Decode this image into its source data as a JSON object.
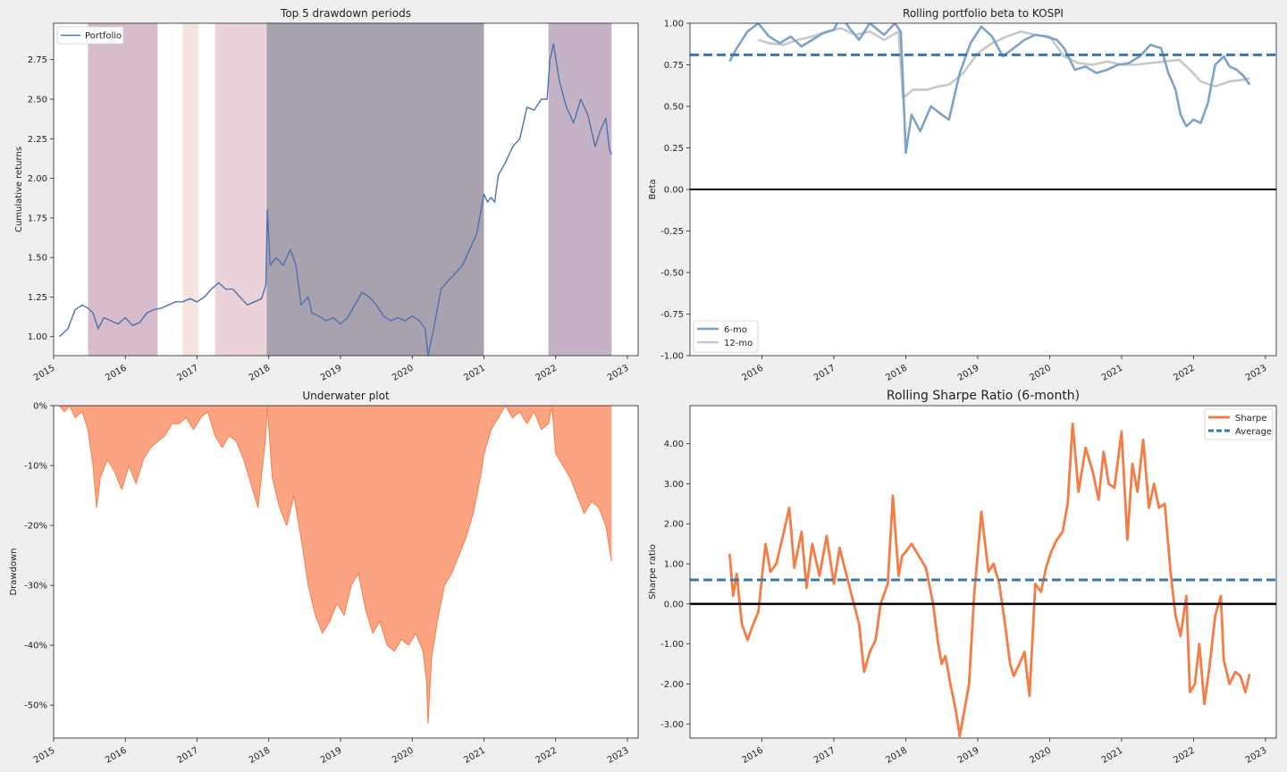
{
  "chart_data": [
    {
      "type": "line",
      "title": "Top 5 drawdown periods",
      "xlabel": "",
      "ylabel": "Cumulative returns",
      "ylim": [
        0.88,
        2.98
      ],
      "xlim": [
        2015.0,
        2023.15
      ],
      "xticks": [
        "2015",
        "2016",
        "2017",
        "2018",
        "2019",
        "2020",
        "2021",
        "2022",
        "2023"
      ],
      "yticks": [
        "1.00",
        "1.25",
        "1.50",
        "1.75",
        "2.00",
        "2.25",
        "2.50",
        "2.75"
      ],
      "legend": {
        "position": "top-left",
        "entries": [
          "Portfolio"
        ]
      },
      "drawdown_periods": [
        {
          "start": 2015.48,
          "end": 2016.45,
          "color": "#c7a0b5",
          "opacity": 0.7
        },
        {
          "start": 2016.8,
          "end": 2017.02,
          "color": "#f2d6d0",
          "opacity": 0.7
        },
        {
          "start": 2017.25,
          "end": 2017.97,
          "color": "#ddb4bf",
          "opacity": 0.6
        },
        {
          "start": 2017.97,
          "end": 2021.0,
          "color": "#7a6e82",
          "opacity": 0.65
        },
        {
          "start": 2021.9,
          "end": 2022.78,
          "color": "#9f7fa1",
          "opacity": 0.6
        }
      ],
      "series": [
        {
          "name": "Portfolio",
          "color": "#4c72b0",
          "x": [
            2015.08,
            2015.2,
            2015.3,
            2015.4,
            2015.48,
            2015.55,
            2015.62,
            2015.7,
            2015.8,
            2015.9,
            2016.0,
            2016.1,
            2016.2,
            2016.3,
            2016.4,
            2016.5,
            2016.6,
            2016.7,
            2016.8,
            2016.9,
            2017.0,
            2017.1,
            2017.2,
            2017.3,
            2017.4,
            2017.5,
            2017.6,
            2017.7,
            2017.8,
            2017.9,
            2017.96,
            2017.98,
            2018.02,
            2018.1,
            2018.2,
            2018.3,
            2018.38,
            2018.45,
            2018.55,
            2018.6,
            2018.7,
            2018.8,
            2018.9,
            2019.0,
            2019.1,
            2019.2,
            2019.3,
            2019.4,
            2019.5,
            2019.6,
            2019.7,
            2019.8,
            2019.9,
            2020.0,
            2020.1,
            2020.18,
            2020.22,
            2020.3,
            2020.4,
            2020.5,
            2020.6,
            2020.7,
            2020.8,
            2020.9,
            2021.0,
            2021.05,
            2021.1,
            2021.15,
            2021.2,
            2021.3,
            2021.4,
            2021.5,
            2021.6,
            2021.7,
            2021.8,
            2021.88,
            2021.92,
            2021.97,
            2022.05,
            2022.15,
            2022.25,
            2022.35,
            2022.45,
            2022.55,
            2022.62,
            2022.7,
            2022.75,
            2022.78
          ],
          "y": [
            1.0,
            1.05,
            1.17,
            1.2,
            1.18,
            1.15,
            1.05,
            1.12,
            1.1,
            1.08,
            1.12,
            1.07,
            1.09,
            1.15,
            1.17,
            1.18,
            1.2,
            1.22,
            1.22,
            1.24,
            1.22,
            1.25,
            1.3,
            1.34,
            1.3,
            1.3,
            1.25,
            1.2,
            1.22,
            1.24,
            1.33,
            1.8,
            1.45,
            1.5,
            1.45,
            1.55,
            1.45,
            1.2,
            1.25,
            1.15,
            1.13,
            1.1,
            1.12,
            1.08,
            1.12,
            1.2,
            1.28,
            1.25,
            1.2,
            1.13,
            1.1,
            1.12,
            1.1,
            1.13,
            1.1,
            1.05,
            0.88,
            1.05,
            1.3,
            1.35,
            1.4,
            1.45,
            1.55,
            1.65,
            1.9,
            1.85,
            1.88,
            1.85,
            2.02,
            2.1,
            2.2,
            2.25,
            2.45,
            2.43,
            2.5,
            2.5,
            2.75,
            2.85,
            2.62,
            2.45,
            2.35,
            2.5,
            2.4,
            2.2,
            2.3,
            2.38,
            2.18,
            2.15
          ]
        }
      ]
    },
    {
      "type": "line",
      "title": "Rolling portfolio beta to KOSPI",
      "xlabel": "",
      "ylabel": "Beta",
      "ylim": [
        -1.0,
        1.0
      ],
      "xlim": [
        2015.0,
        2023.15
      ],
      "xticks": [
        "2016",
        "2017",
        "2018",
        "2019",
        "2020",
        "2021",
        "2022",
        "2023"
      ],
      "yticks": [
        "-1.00",
        "-0.75",
        "-0.50",
        "-0.25",
        "0.00",
        "0.25",
        "0.50",
        "0.75",
        "1.00"
      ],
      "average_line": 0.81,
      "zero_line": 0.0,
      "legend": {
        "position": "bottom-left",
        "entries": [
          "6-mo",
          "12-mo"
        ]
      },
      "series": [
        {
          "name": "6-mo",
          "color": "#7ea3c8",
          "x": [
            2015.55,
            2015.65,
            2015.8,
            2015.95,
            2016.1,
            2016.25,
            2016.4,
            2016.55,
            2016.7,
            2016.85,
            2017.0,
            2017.1,
            2017.2,
            2017.35,
            2017.5,
            2017.7,
            2017.85,
            2017.93,
            2017.96,
            2018.0,
            2018.08,
            2018.2,
            2018.35,
            2018.5,
            2018.6,
            2018.75,
            2018.9,
            2019.05,
            2019.2,
            2019.35,
            2019.5,
            2019.65,
            2019.8,
            2019.95,
            2020.1,
            2020.2,
            2020.35,
            2020.5,
            2020.65,
            2020.8,
            2020.95,
            2021.1,
            2021.25,
            2021.4,
            2021.55,
            2021.65,
            2021.75,
            2021.82,
            2021.9,
            2022.0,
            2022.1,
            2022.2,
            2022.3,
            2022.42,
            2022.5,
            2022.6,
            2022.7,
            2022.78
          ],
          "y": [
            0.77,
            0.85,
            0.95,
            1.0,
            0.92,
            0.88,
            0.92,
            0.86,
            0.9,
            0.94,
            0.96,
            1.05,
            0.98,
            0.9,
            1.0,
            0.93,
            1.0,
            0.95,
            0.65,
            0.22,
            0.45,
            0.35,
            0.5,
            0.45,
            0.42,
            0.7,
            0.88,
            0.98,
            0.92,
            0.8,
            0.85,
            0.9,
            0.93,
            0.92,
            0.9,
            0.85,
            0.72,
            0.74,
            0.7,
            0.72,
            0.75,
            0.76,
            0.8,
            0.87,
            0.85,
            0.7,
            0.6,
            0.45,
            0.38,
            0.42,
            0.4,
            0.52,
            0.75,
            0.8,
            0.74,
            0.72,
            0.68,
            0.63
          ]
        },
        {
          "name": "12-mo",
          "color": "#c8c8c8",
          "x": [
            2015.95,
            2016.1,
            2016.3,
            2016.5,
            2016.7,
            2016.9,
            2017.1,
            2017.3,
            2017.5,
            2017.7,
            2017.9,
            2017.96,
            2018.1,
            2018.3,
            2018.45,
            2018.6,
            2018.8,
            2019.0,
            2019.2,
            2019.4,
            2019.6,
            2019.8,
            2020.0,
            2020.2,
            2020.4,
            2020.6,
            2020.8,
            2021.0,
            2021.2,
            2021.4,
            2021.6,
            2021.8,
            2021.95,
            2022.1,
            2022.3,
            2022.5,
            2022.7,
            2022.78
          ],
          "y": [
            0.9,
            0.88,
            0.87,
            0.9,
            0.92,
            0.95,
            0.97,
            0.93,
            0.95,
            0.9,
            0.95,
            0.55,
            0.6,
            0.6,
            0.62,
            0.63,
            0.7,
            0.82,
            0.88,
            0.92,
            0.95,
            0.93,
            0.92,
            0.8,
            0.76,
            0.75,
            0.77,
            0.75,
            0.75,
            0.76,
            0.77,
            0.78,
            0.72,
            0.65,
            0.62,
            0.65,
            0.66,
            0.67
          ]
        }
      ]
    },
    {
      "type": "area",
      "title": "Underwater plot",
      "xlabel": "",
      "ylabel": "Drawdown",
      "ylim": [
        -55.5,
        0
      ],
      "xlim": [
        2015.0,
        2023.15
      ],
      "xticks": [
        "2015",
        "2016",
        "2017",
        "2018",
        "2019",
        "2020",
        "2021",
        "2022",
        "2023"
      ],
      "yticks": [
        "0%",
        "-10%",
        "-20%",
        "-30%",
        "-40%",
        "-50%"
      ],
      "series": [
        {
          "name": "Drawdown",
          "color": "#f5875a",
          "fill": "#fca481",
          "x": [
            2015.08,
            2015.15,
            2015.22,
            2015.3,
            2015.4,
            2015.48,
            2015.55,
            2015.6,
            2015.65,
            2015.75,
            2015.85,
            2015.95,
            2016.05,
            2016.15,
            2016.25,
            2016.35,
            2016.45,
            2016.55,
            2016.65,
            2016.75,
            2016.85,
            2016.95,
            2017.05,
            2017.15,
            2017.25,
            2017.35,
            2017.45,
            2017.55,
            2017.65,
            2017.75,
            2017.85,
            2017.95,
            2017.98,
            2018.05,
            2018.15,
            2018.25,
            2018.35,
            2018.45,
            2018.55,
            2018.65,
            2018.75,
            2018.85,
            2018.95,
            2019.05,
            2019.15,
            2019.25,
            2019.35,
            2019.45,
            2019.55,
            2019.65,
            2019.75,
            2019.85,
            2019.95,
            2020.05,
            2020.15,
            2020.2,
            2020.22,
            2020.27,
            2020.35,
            2020.45,
            2020.55,
            2020.65,
            2020.75,
            2020.85,
            2020.95,
            2021.0,
            2021.1,
            2021.2,
            2021.3,
            2021.4,
            2021.5,
            2021.6,
            2021.7,
            2021.8,
            2021.9,
            2021.95,
            2022.0,
            2022.1,
            2022.2,
            2022.3,
            2022.4,
            2022.5,
            2022.6,
            2022.7,
            2022.78
          ],
          "y": [
            0,
            -1,
            0,
            -2,
            -1,
            -4,
            -10,
            -17,
            -12,
            -9,
            -11,
            -14,
            -10,
            -13,
            -9,
            -7,
            -6,
            -5,
            -3,
            -3,
            -2,
            -4,
            -2,
            -1,
            -5,
            -7,
            -5,
            -6,
            -9,
            -13,
            -17,
            -6,
            0,
            -12,
            -17,
            -20,
            -15,
            -22,
            -30,
            -35,
            -38,
            -36,
            -33,
            -35,
            -30,
            -28,
            -34,
            -38,
            -36,
            -40,
            -41,
            -39,
            -40,
            -38,
            -41,
            -46,
            -53,
            -42,
            -36,
            -30,
            -28,
            -25,
            -22,
            -18,
            -12,
            -8,
            -4,
            -2,
            0,
            -2,
            -1,
            -3,
            -1,
            -4,
            -3,
            0,
            -8,
            -10,
            -12,
            -15,
            -18,
            -16,
            -17,
            -20,
            -26
          ]
        }
      ]
    },
    {
      "type": "line",
      "title": "Rolling Sharpe Ratio (6-month)",
      "xlabel": "",
      "ylabel": "Sharpe ratio",
      "ylim": [
        -3.35,
        4.95
      ],
      "xlim": [
        2015.0,
        2023.15
      ],
      "xticks": [
        "2016",
        "2017",
        "2018",
        "2019",
        "2020",
        "2021",
        "2022",
        "2023"
      ],
      "yticks": [
        "-3.00",
        "-2.00",
        "-1.00",
        "0.00",
        "1.00",
        "2.00",
        "3.00",
        "4.00"
      ],
      "average_line": 0.6,
      "zero_line": 0.0,
      "legend": {
        "position": "top-right",
        "entries": [
          "Sharpe",
          "Average"
        ]
      },
      "series": [
        {
          "name": "Sharpe",
          "color": "#f57c45",
          "x": [
            2015.55,
            2015.6,
            2015.65,
            2015.72,
            2015.8,
            2015.88,
            2015.95,
            2016.05,
            2016.12,
            2016.2,
            2016.28,
            2016.38,
            2016.45,
            2016.55,
            2016.62,
            2016.7,
            2016.8,
            2016.9,
            2017.0,
            2017.08,
            2017.15,
            2017.25,
            2017.35,
            2017.42,
            2017.5,
            2017.58,
            2017.65,
            2017.75,
            2017.82,
            2017.9,
            2017.95,
            2018.0,
            2018.08,
            2018.18,
            2018.28,
            2018.38,
            2018.45,
            2018.5,
            2018.55,
            2018.62,
            2018.7,
            2018.75,
            2018.8,
            2018.88,
            2018.95,
            2019.05,
            2019.15,
            2019.22,
            2019.3,
            2019.38,
            2019.45,
            2019.5,
            2019.58,
            2019.65,
            2019.72,
            2019.8,
            2019.88,
            2019.95,
            2020.02,
            2020.1,
            2020.18,
            2020.25,
            2020.32,
            2020.4,
            2020.5,
            2020.6,
            2020.68,
            2020.75,
            2020.82,
            2020.9,
            2021.0,
            2021.08,
            2021.15,
            2021.22,
            2021.3,
            2021.38,
            2021.45,
            2021.52,
            2021.6,
            2021.68,
            2021.75,
            2021.82,
            2021.9,
            2021.95,
            2022.02,
            2022.08,
            2022.15,
            2022.22,
            2022.3,
            2022.38,
            2022.42,
            2022.5,
            2022.58,
            2022.65,
            2022.72,
            2022.78
          ],
          "y": [
            1.25,
            0.2,
            0.75,
            -0.5,
            -0.9,
            -0.5,
            -0.2,
            1.5,
            0.8,
            1.0,
            1.6,
            2.4,
            0.9,
            1.8,
            0.4,
            1.5,
            0.7,
            1.7,
            0.5,
            1.4,
            0.9,
            0.2,
            -0.5,
            -1.7,
            -1.2,
            -0.9,
            0.0,
            0.5,
            2.7,
            0.7,
            1.2,
            1.3,
            1.5,
            1.2,
            0.9,
            0.0,
            -1.0,
            -1.5,
            -1.3,
            -2.0,
            -2.7,
            -3.3,
            -2.8,
            -2.0,
            0.2,
            2.3,
            0.8,
            1.0,
            0.5,
            -0.5,
            -1.5,
            -1.8,
            -1.5,
            -1.2,
            -2.3,
            0.5,
            0.3,
            0.9,
            1.3,
            1.6,
            1.8,
            2.5,
            4.5,
            2.8,
            3.9,
            3.3,
            2.6,
            3.8,
            3.0,
            2.9,
            4.3,
            1.6,
            3.5,
            2.8,
            4.1,
            2.4,
            3.0,
            2.4,
            2.5,
            0.8,
            -0.3,
            -0.8,
            0.2,
            -2.2,
            -2.0,
            -1.0,
            -2.5,
            -1.6,
            -0.3,
            0.2,
            -1.4,
            -2.0,
            -1.7,
            -1.8,
            -2.2,
            -1.75
          ]
        }
      ]
    }
  ]
}
